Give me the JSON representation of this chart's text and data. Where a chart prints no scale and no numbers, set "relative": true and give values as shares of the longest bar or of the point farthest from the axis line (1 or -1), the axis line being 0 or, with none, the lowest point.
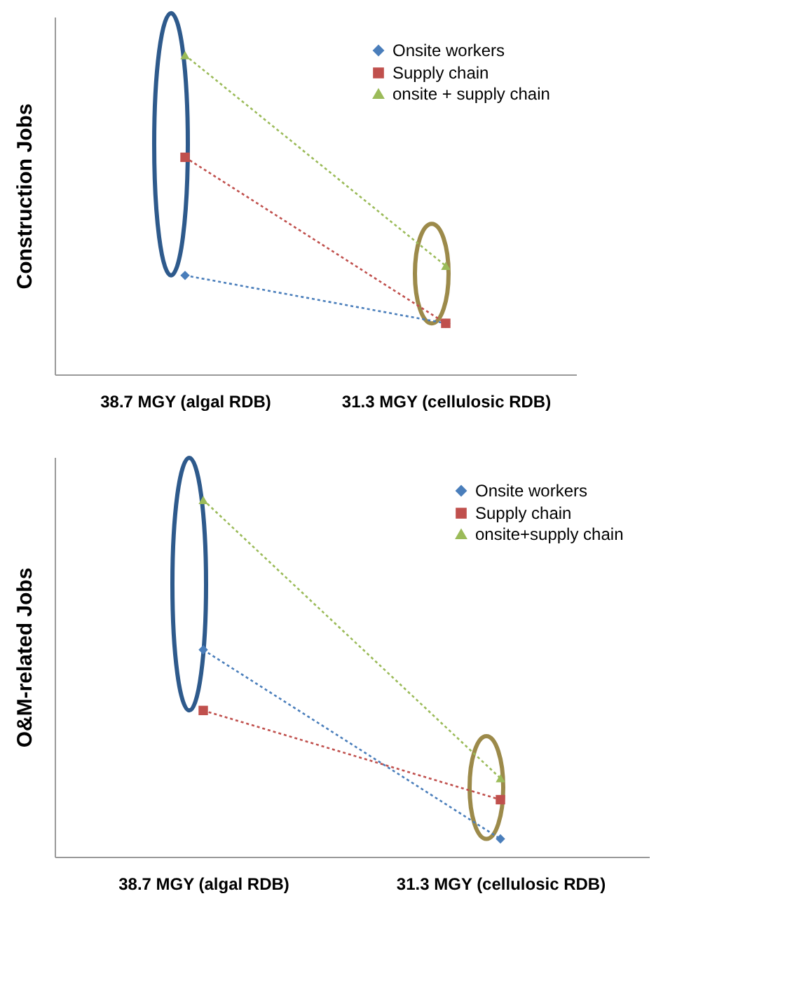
{
  "chart_data": [
    {
      "type": "line",
      "ylabel": "Construction Jobs",
      "categories": [
        "38.7 MGY (algal RDB)",
        "31.3 MGY (cellulosic RDB)"
      ],
      "relative": true,
      "legend": "top right",
      "line_style": "dotted",
      "series": [
        {
          "name": "Onsite workers",
          "color": "#4a7ebb",
          "marker": "diamond",
          "values": [
            0.31,
            0.16
          ]
        },
        {
          "name": "Supply chain",
          "color": "#c0504d",
          "marker": "square",
          "values": [
            0.68,
            0.16
          ]
        },
        {
          "name": "onsite + supply chain",
          "color": "#9bbb59",
          "marker": "triangle",
          "values": [
            1,
            0.34
          ]
        }
      ]
    },
    {
      "type": "line",
      "ylabel": "O&M-related Jobs",
      "categories": [
        "38.7 MGY (algal RDB)",
        "31.3 MGY (cellulosic RDB)"
      ],
      "relative": true,
      "legend": "top right",
      "line_style": "dotted",
      "series": [
        {
          "name": "Onsite workers",
          "color": "#4a7ebb",
          "marker": "diamond",
          "values": [
            0.58,
            0.05
          ]
        },
        {
          "name": "Supply chain",
          "color": "#c0504d",
          "marker": "square",
          "values": [
            0.41,
            0.16
          ]
        },
        {
          "name": "onsite+supply chain",
          "color": "#9bbb59",
          "marker": "triangle",
          "values": [
            1,
            0.22
          ]
        }
      ]
    }
  ]
}
